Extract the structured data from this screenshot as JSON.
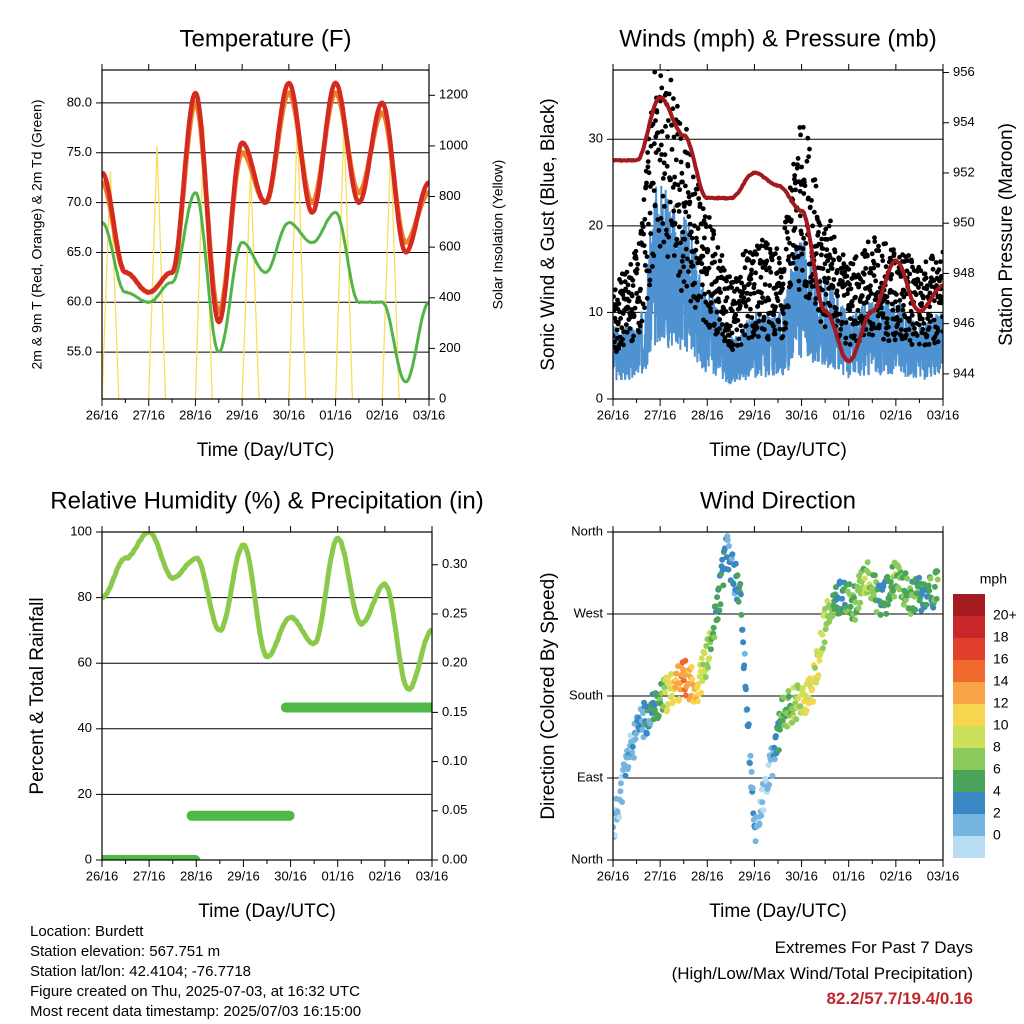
{
  "colors": {
    "temp2m": "#d42a20",
    "temp9m": "#f07f2a",
    "dew": "#52b447",
    "solar": "#f7df5c",
    "gust": "#000000",
    "wind": "#4f92d1",
    "pressure": "#a3191e",
    "rh": "#8bc94a",
    "precip": "#4fb947",
    "extremes": "#c0272d"
  },
  "x_ticks": [
    "26/16",
    "27/16",
    "28/16",
    "29/16",
    "30/16",
    "01/16",
    "02/16",
    "03/16"
  ],
  "x_label": "Time (Day/UTC)",
  "speed_legend": {
    "title": "mph",
    "labels": [
      "20+",
      "18",
      "16",
      "14",
      "12",
      "10",
      "8",
      "6",
      "4",
      "2",
      "0"
    ],
    "colors": [
      "#a31b1e",
      "#c8272a",
      "#e0402b",
      "#f06a2d",
      "#f9a347",
      "#f7d54e",
      "#cce05a",
      "#8ccb5b",
      "#4aa55b",
      "#3a88c3",
      "#76b5e0",
      "#b9def3"
    ]
  },
  "chart_data": [
    {
      "type": "line",
      "title": "Temperature (F)",
      "xlabel": "Time (Day/UTC)",
      "ylabel": "2m & 9m T (Red, Orange) & 2m Td (Green)",
      "ylabel_right": "Solar Insolation (Yellow)",
      "x": [
        0,
        0.5,
        1,
        1.5,
        2,
        2.5,
        3,
        3.5,
        4,
        4.5,
        5,
        5.5,
        6,
        6.5,
        7
      ],
      "ylim": [
        50.3,
        83.3
      ],
      "y_ticks": [
        "55.0",
        "60.0",
        "65.0",
        "70.0",
        "75.0",
        "80.0"
      ],
      "y_tick_values": [
        55,
        60,
        65,
        70,
        75,
        80
      ],
      "ylim_right": [
        0,
        1300
      ],
      "y_ticks_right": [
        "0",
        "200",
        "400",
        "600",
        "800",
        "1000",
        "1200"
      ],
      "y_tick_values_right": [
        0,
        200,
        400,
        600,
        800,
        1000,
        1200
      ],
      "series": [
        {
          "name": "2m T",
          "values": [
            73,
            63,
            61,
            63,
            81,
            58,
            76,
            70,
            82,
            69,
            82,
            70,
            80,
            65,
            72
          ]
        },
        {
          "name": "9m T",
          "values": [
            72,
            63,
            61,
            63,
            80,
            59,
            75,
            70,
            81,
            70,
            81,
            71,
            79,
            66,
            71
          ]
        },
        {
          "name": "2m Td",
          "values": [
            68,
            61,
            60,
            62,
            71,
            55,
            66,
            63,
            68,
            66,
            69,
            60,
            60,
            52,
            60
          ]
        },
        {
          "name": "Solar",
          "values": [
            900,
            0,
            1000,
            0,
            1080,
            0,
            900,
            0,
            1100,
            0,
            1100,
            0,
            1000,
            0,
            1000
          ]
        }
      ],
      "grid": true
    },
    {
      "type": "line",
      "title": "Winds (mph) & Pressure (mb)",
      "xlabel": "Time (Day/UTC)",
      "ylabel": "Sonic Wind & Gust (Blue, Black)",
      "ylabel_right": "Station Pressure (Maroon)",
      "x": [
        0,
        0.5,
        1,
        1.5,
        2,
        2.5,
        3,
        3.5,
        4,
        4.5,
        5,
        5.5,
        6,
        6.5,
        7
      ],
      "ylim": [
        0,
        38
      ],
      "y_ticks": [
        "0",
        "10",
        "20",
        "30"
      ],
      "y_tick_values": [
        0,
        10,
        20,
        30
      ],
      "ylim_right": [
        943,
        956.1
      ],
      "y_ticks_right": [
        "944",
        "946",
        "948",
        "950",
        "952",
        "954",
        "956"
      ],
      "y_tick_values_right": [
        944,
        946,
        948,
        950,
        952,
        954,
        956
      ],
      "series": [
        {
          "name": "Gust",
          "values": [
            9,
            12,
            30,
            22,
            15,
            10,
            13,
            12,
            22,
            15,
            11,
            13,
            12,
            11,
            12
          ]
        },
        {
          "name": "Wind",
          "values": [
            6,
            6,
            18,
            15,
            9,
            5,
            7,
            7,
            13,
            10,
            7,
            8,
            8,
            6,
            7
          ]
        },
        {
          "name": "Pressure",
          "values": [
            952.5,
            952.5,
            955.0,
            953.5,
            951,
            951,
            952,
            951.5,
            950.5,
            946.5,
            944.5,
            946.5,
            948.5,
            946.5,
            947.5
          ]
        }
      ],
      "grid": true
    },
    {
      "type": "line",
      "title": "Relative Humidity (%) & Precipitation (in)",
      "xlabel": "Time (Day/UTC)",
      "ylabel": "Percent & Total Rainfall",
      "x": [
        0,
        0.5,
        1,
        1.5,
        2,
        2.5,
        3,
        3.5,
        4,
        4.5,
        5,
        5.5,
        6,
        6.5,
        7
      ],
      "ylim": [
        0,
        100
      ],
      "y_ticks": [
        "0",
        "20",
        "40",
        "60",
        "80",
        "100"
      ],
      "y_tick_values": [
        0,
        20,
        40,
        60,
        80,
        100
      ],
      "ylim_right": [
        0,
        0.3333
      ],
      "y_ticks_right": [
        "0.00",
        "0.05",
        "0.10",
        "0.15",
        "0.20",
        "0.25",
        "0.30"
      ],
      "y_tick_values_right": [
        0,
        0.05,
        0.1,
        0.15,
        0.2,
        0.25,
        0.3
      ],
      "series": [
        {
          "name": "RH",
          "values": [
            80,
            92,
            100,
            86,
            92,
            70,
            96,
            62,
            74,
            66,
            98,
            72,
            84,
            52,
            70
          ]
        },
        {
          "name": "Precipitation",
          "values": [
            0,
            0,
            0,
            0,
            0.045,
            0.045,
            0.045,
            0.045,
            0.155,
            0.155,
            0.155,
            0.155,
            0.155,
            0.155,
            0.155
          ]
        }
      ],
      "grid": true
    },
    {
      "type": "scatter",
      "title": "Wind Direction",
      "xlabel": "Time (Day/UTC)",
      "ylabel": "Direction (Colored By Speed)",
      "ylim": [
        0,
        360
      ],
      "y_ticks": [
        "North",
        "East",
        "South",
        "West",
        "North"
      ],
      "y_tick_values": [
        0,
        90,
        180,
        270,
        360
      ],
      "colorbar_label": "mph",
      "points_x": [
        0.0,
        0.3,
        0.6,
        0.9,
        1.2,
        1.5,
        1.8,
        2.1,
        2.4,
        2.7,
        3.0,
        3.3,
        3.6,
        3.9,
        4.2,
        4.5,
        4.8,
        5.1,
        5.4,
        5.7,
        6.0,
        6.3,
        6.6,
        6.9
      ],
      "points_dir": [
        30,
        110,
        150,
        170,
        185,
        200,
        190,
        240,
        340,
        290,
        30,
        90,
        160,
        175,
        180,
        260,
        290,
        280,
        310,
        280,
        310,
        290,
        290,
        300
      ],
      "points_speed": [
        2,
        3,
        4,
        6,
        12,
        16,
        13,
        8,
        4,
        6,
        3,
        2,
        8,
        10,
        12,
        10,
        6,
        8,
        10,
        6,
        9,
        7,
        6,
        8
      ],
      "grid": true
    }
  ],
  "info": {
    "location": "Location: Burdett",
    "elevation": "Station elevation: 567.751 m",
    "latlon": "Station lat/lon: 42.4104; -76.7718",
    "created": "Figure created on Thu, 2025-07-03, at 16:32 UTC",
    "recent": "Most recent data timestamp: 2025/07/03 16:15:00"
  },
  "extremes": {
    "line1": "Extremes For Past 7 Days",
    "line2": "(High/Low/Max Wind/Total Precipitation)",
    "values": "82.2/57.7/19.4/0.16"
  }
}
